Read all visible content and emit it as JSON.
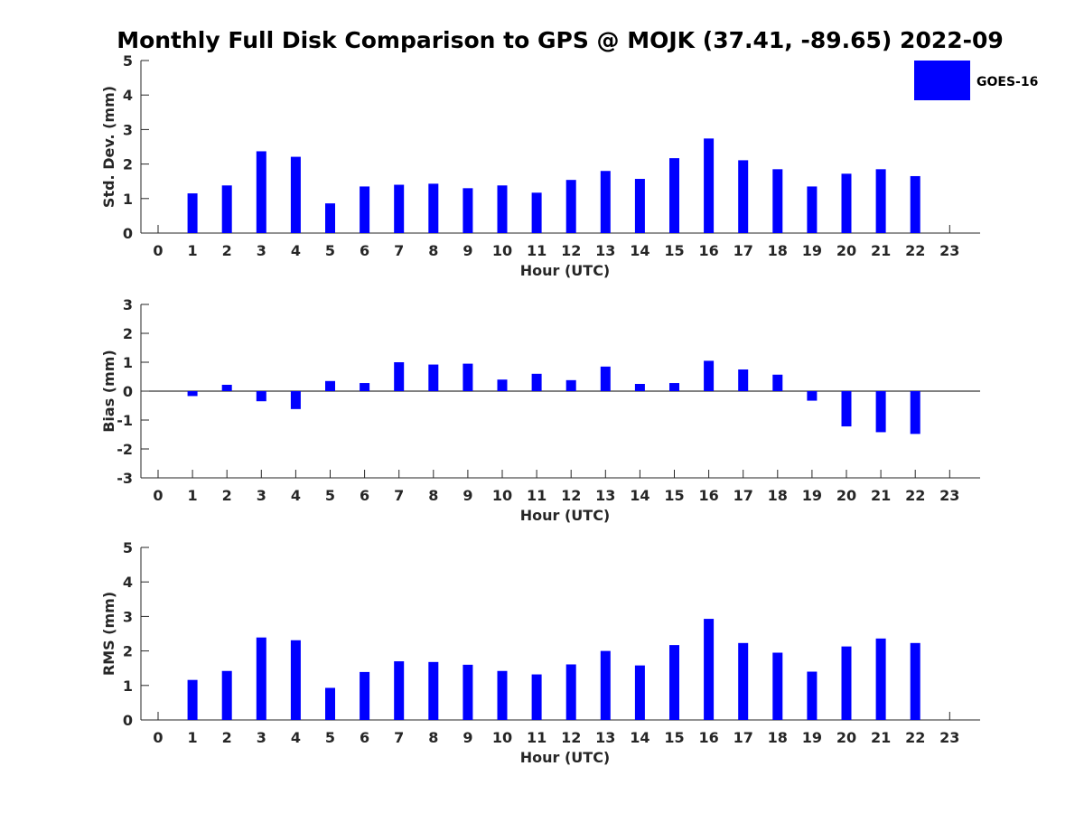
{
  "title": "Monthly Full Disk Comparison to GPS @ MOJK (37.41, -89.65) 2022-09",
  "colors": {
    "bar": "#0000ff",
    "axis": "#262626"
  },
  "chart_data": [
    {
      "type": "bar",
      "xlabel": "Hour (UTC)",
      "ylabel": "Std. Dev. (mm)",
      "ylim": [
        0,
        5
      ],
      "yticks": [
        0,
        1,
        2,
        3,
        4,
        5
      ],
      "categories": [
        0,
        1,
        2,
        3,
        4,
        5,
        6,
        7,
        8,
        9,
        10,
        11,
        12,
        13,
        14,
        15,
        16,
        17,
        18,
        19,
        20,
        21,
        22,
        23
      ],
      "legend": {
        "position": "top-right",
        "entries": [
          "GOES-16"
        ]
      },
      "series": [
        {
          "name": "GOES-16",
          "values": [
            null,
            1.15,
            1.38,
            2.37,
            2.21,
            0.86,
            1.35,
            1.4,
            1.43,
            1.3,
            1.38,
            1.17,
            1.54,
            1.8,
            1.57,
            2.17,
            2.74,
            2.11,
            1.85,
            1.35,
            1.72,
            1.85,
            1.65,
            null
          ]
        }
      ],
      "grid": false
    },
    {
      "type": "bar",
      "xlabel": "Hour (UTC)",
      "ylabel": "Bias (mm)",
      "ylim": [
        -3,
        3
      ],
      "yticks": [
        -3,
        -2,
        -1,
        0,
        1,
        2,
        3
      ],
      "categories": [
        0,
        1,
        2,
        3,
        4,
        5,
        6,
        7,
        8,
        9,
        10,
        11,
        12,
        13,
        14,
        15,
        16,
        17,
        18,
        19,
        20,
        21,
        22,
        23
      ],
      "series": [
        {
          "name": "GOES-16",
          "values": [
            null,
            -0.17,
            0.22,
            -0.35,
            -0.62,
            0.35,
            0.28,
            1.0,
            0.92,
            0.95,
            0.4,
            0.6,
            0.38,
            0.85,
            0.25,
            0.28,
            1.05,
            0.75,
            0.57,
            -0.33,
            -1.22,
            -1.42,
            -1.48,
            null
          ]
        }
      ],
      "grid": false
    },
    {
      "type": "bar",
      "xlabel": "Hour (UTC)",
      "ylabel": "RMS (mm)",
      "ylim": [
        0,
        5
      ],
      "yticks": [
        0,
        1,
        2,
        3,
        4,
        5
      ],
      "categories": [
        0,
        1,
        2,
        3,
        4,
        5,
        6,
        7,
        8,
        9,
        10,
        11,
        12,
        13,
        14,
        15,
        16,
        17,
        18,
        19,
        20,
        21,
        22,
        23
      ],
      "series": [
        {
          "name": "GOES-16",
          "values": [
            null,
            1.16,
            1.42,
            2.39,
            2.31,
            0.93,
            1.39,
            1.7,
            1.68,
            1.6,
            1.42,
            1.32,
            1.61,
            2.0,
            1.58,
            2.17,
            2.93,
            2.23,
            1.95,
            1.4,
            2.13,
            2.36,
            2.23,
            null
          ]
        }
      ],
      "grid": false
    }
  ]
}
